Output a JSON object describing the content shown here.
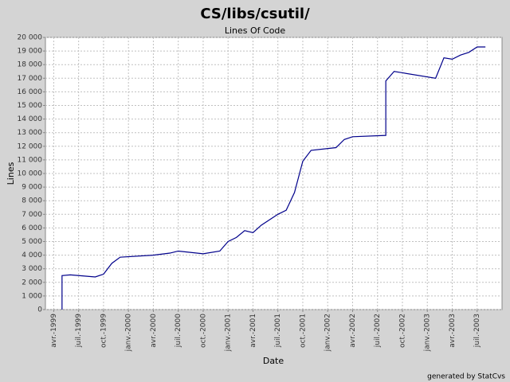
{
  "chart_data": {
    "type": "line",
    "title": "CS/libs/csutil/",
    "subtitle": "Lines Of Code",
    "xlabel": "Date",
    "ylabel": "Lines",
    "footer": "generated by StatCvs",
    "x": [
      "1999-05",
      "1999-05",
      "1999-06",
      "1999-09",
      "1999-10",
      "1999-11",
      "1999-12",
      "2000-04",
      "2000-06",
      "2000-07",
      "2000-10",
      "2000-12",
      "2001-01",
      "2001-02",
      "2001-03",
      "2001-04",
      "2001-05",
      "2001-06",
      "2001-07",
      "2001-08",
      "2001-09",
      "2001-10",
      "2001-11",
      "2002-02",
      "2002-03",
      "2002-04",
      "2002-08",
      "2002-08",
      "2002-09",
      "2002-10",
      "2003-02",
      "2003-03",
      "2003-04",
      "2003-05",
      "2003-06",
      "2003-07",
      "2003-08"
    ],
    "series": [
      {
        "name": "Lines Of Code",
        "color": "#00008b",
        "values": [
          0,
          2500,
          2550,
          2400,
          2600,
          3400,
          3850,
          4000,
          4150,
          4300,
          4100,
          4300,
          5000,
          5300,
          5800,
          5650,
          6200,
          6600,
          7000,
          7300,
          8600,
          10900,
          11700,
          11900,
          12500,
          12700,
          12800,
          16800,
          17500,
          17400,
          17000,
          18500,
          18400,
          18700,
          18900,
          19300,
          19300
        ]
      }
    ],
    "xlim": [
      "1999-03",
      "2003-10"
    ],
    "xticks": [
      {
        "value": "1999-04",
        "label": "avr.-1999"
      },
      {
        "value": "1999-07",
        "label": "juil.-1999"
      },
      {
        "value": "1999-10",
        "label": "oct.-1999"
      },
      {
        "value": "2000-01",
        "label": "janv.-2000"
      },
      {
        "value": "2000-04",
        "label": "avr.-2000"
      },
      {
        "value": "2000-07",
        "label": "juil.-2000"
      },
      {
        "value": "2000-10",
        "label": "oct.-2000"
      },
      {
        "value": "2001-01",
        "label": "janv.-2001"
      },
      {
        "value": "2001-04",
        "label": "avr.-2001"
      },
      {
        "value": "2001-07",
        "label": "juil.-2001"
      },
      {
        "value": "2001-10",
        "label": "oct.-2001"
      },
      {
        "value": "2002-01",
        "label": "janv.-2002"
      },
      {
        "value": "2002-04",
        "label": "avr.-2002"
      },
      {
        "value": "2002-07",
        "label": "juil.-2002"
      },
      {
        "value": "2002-10",
        "label": "oct.-2002"
      },
      {
        "value": "2003-01",
        "label": "janv.-2003"
      },
      {
        "value": "2003-04",
        "label": "avr.-2003"
      },
      {
        "value": "2003-07",
        "label": "juil.-2003"
      }
    ],
    "ylim": [
      0,
      20000
    ],
    "yticks": [
      0,
      {
        "value": 1000,
        "label": "1 000"
      },
      {
        "value": 2000,
        "label": "2 000"
      },
      {
        "value": 3000,
        "label": "3 000"
      },
      {
        "value": 4000,
        "label": "4 000"
      },
      {
        "value": 5000,
        "label": "5 000"
      },
      {
        "value": 6000,
        "label": "6 000"
      },
      {
        "value": 7000,
        "label": "7 000"
      },
      {
        "value": 8000,
        "label": "8 000"
      },
      {
        "value": 9000,
        "label": "9 000"
      },
      {
        "value": 10000,
        "label": "10 000"
      },
      {
        "value": 11000,
        "label": "11 000"
      },
      {
        "value": 12000,
        "label": "12 000"
      },
      {
        "value": 13000,
        "label": "13 000"
      },
      {
        "value": 14000,
        "label": "14 000"
      },
      {
        "value": 15000,
        "label": "15 000"
      },
      {
        "value": 16000,
        "label": "16 000"
      },
      {
        "value": 17000,
        "label": "17 000"
      },
      {
        "value": 18000,
        "label": "18 000"
      },
      {
        "value": 19000,
        "label": "19 000"
      },
      {
        "value": 20000,
        "label": "20 000"
      }
    ],
    "grid": true
  }
}
